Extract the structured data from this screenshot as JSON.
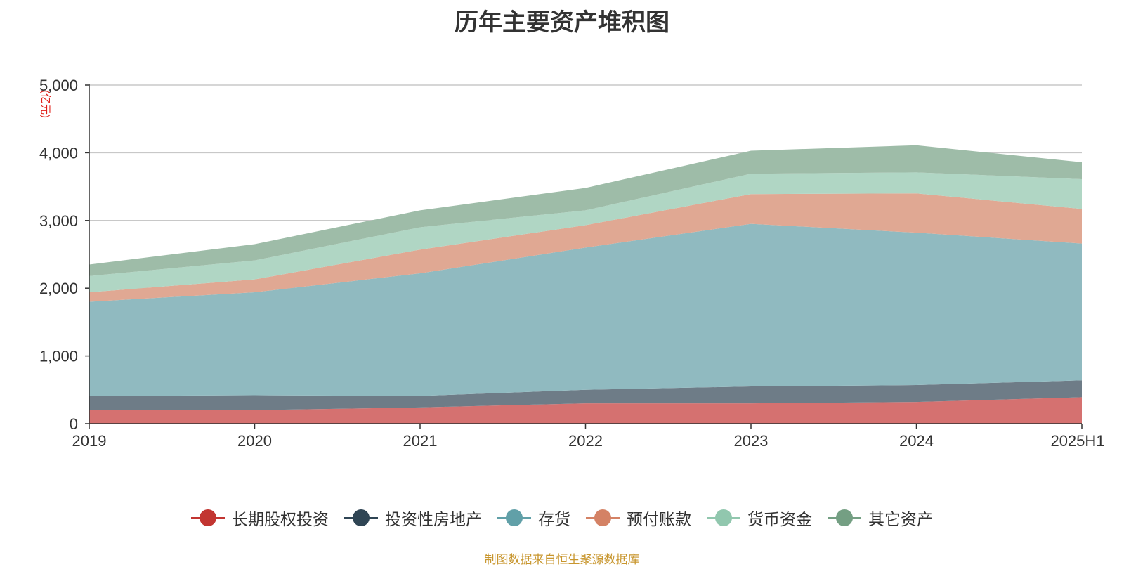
{
  "title": "历年主要资产堆积图",
  "source": "制图数据来自恒生聚源数据库",
  "chart_data": {
    "type": "area",
    "stacked": true,
    "title": "历年主要资产堆积图",
    "ylabel": "(亿元)",
    "x": [
      "2019",
      "2020",
      "2021",
      "2022",
      "2023",
      "2024",
      "2025H1"
    ],
    "ylim": [
      0,
      5000
    ],
    "yticks": [
      0,
      1000,
      2000,
      3000,
      4000,
      5000
    ],
    "ytick_labels": [
      "0",
      "1,000",
      "2,000",
      "3,000",
      "4,000",
      "5,000"
    ],
    "grid": true,
    "legend_position": "bottom",
    "series": [
      {
        "name": "长期股权投资",
        "color": "#c23531",
        "area_color": "#d57170",
        "values": [
          200,
          200,
          240,
          300,
          300,
          320,
          390
        ]
      },
      {
        "name": "投资性房地产",
        "color": "#2f4554",
        "area_color": "#6e7c87",
        "values": [
          210,
          220,
          170,
          200,
          250,
          250,
          250
        ]
      },
      {
        "name": "存货",
        "color": "#61a0a8",
        "area_color": "#90bac0",
        "values": [
          1390,
          1520,
          1810,
          2100,
          2400,
          2250,
          2020
        ]
      },
      {
        "name": "预付账款",
        "color": "#d48265",
        "area_color": "#e0a893",
        "values": [
          140,
          190,
          350,
          330,
          440,
          580,
          510
        ]
      },
      {
        "name": "货币资金",
        "color": "#91c7ae",
        "area_color": "#b0d6c4",
        "values": [
          240,
          280,
          330,
          220,
          300,
          310,
          440
        ]
      },
      {
        "name": "其它资产",
        "color": "#749f83",
        "area_color": "#9ebca8",
        "values": [
          170,
          240,
          250,
          330,
          340,
          400,
          250
        ]
      }
    ]
  }
}
